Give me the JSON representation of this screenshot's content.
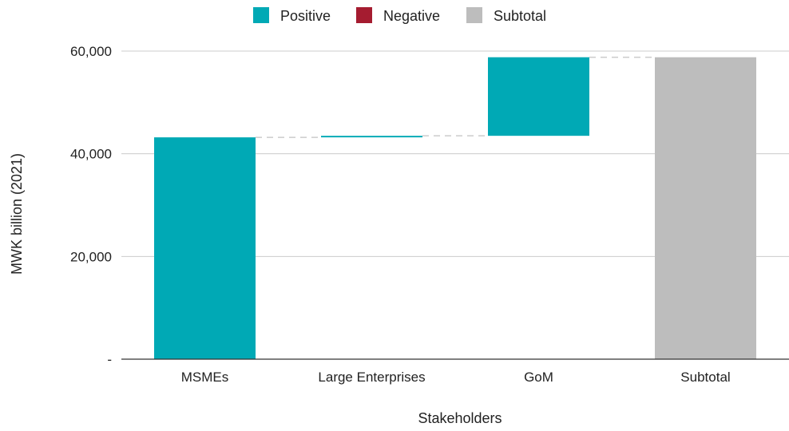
{
  "chart_data": {
    "type": "bar",
    "subtype": "waterfall",
    "title": "",
    "xlabel": "Stakeholders",
    "ylabel": "MWK billion (2021)",
    "ylim": [
      0,
      60000
    ],
    "yticks": [
      {
        "value": 0,
        "label": "-"
      },
      {
        "value": 20000,
        "label": "20,000"
      },
      {
        "value": 40000,
        "label": "40,000"
      },
      {
        "value": 60000,
        "label": "60,000"
      }
    ],
    "categories": [
      "MSMEs",
      "Large Enterprises",
      "GoM",
      "Subtotal"
    ],
    "steps": [
      {
        "category": "MSMEs",
        "kind": "Positive",
        "start": 0,
        "end": 43200
      },
      {
        "category": "Large Enterprises",
        "kind": "Positive",
        "start": 43200,
        "end": 43500
      },
      {
        "category": "GoM",
        "kind": "Positive",
        "start": 43500,
        "end": 58800
      },
      {
        "category": "Subtotal",
        "kind": "Subtotal",
        "start": 0,
        "end": 58800
      }
    ],
    "legend": {
      "position": "top",
      "items": [
        {
          "label": "Positive",
          "color": "#00a9b5"
        },
        {
          "label": "Negative",
          "color": "#a51c30"
        },
        {
          "label": "Subtotal",
          "color": "#bdbdbd"
        }
      ]
    },
    "grid": true,
    "colors": {
      "positive": "#00a9b5",
      "negative": "#a51c30",
      "subtotal": "#bdbdbd",
      "grid": "#cccccc",
      "axis": "#333333",
      "connector": "#cccccc"
    }
  }
}
